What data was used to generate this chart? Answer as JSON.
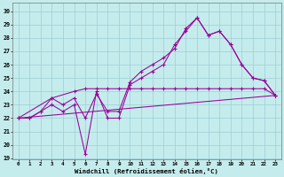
{
  "xlabel": "Windchill (Refroidissement éolien,°C)",
  "background_color": "#c5eced",
  "grid_color": "#9dcdd4",
  "line_color": "#990099",
  "ylim": [
    18.9,
    30.6
  ],
  "xlim": [
    -0.5,
    23.5
  ],
  "yticks": [
    19,
    20,
    21,
    22,
    23,
    24,
    25,
    26,
    27,
    28,
    29,
    30
  ],
  "xticks": [
    0,
    1,
    2,
    3,
    4,
    5,
    6,
    7,
    8,
    9,
    10,
    11,
    12,
    13,
    14,
    15,
    16,
    17,
    18,
    19,
    20,
    21,
    22,
    23
  ],
  "s1x": [
    0,
    1,
    2,
    3,
    4,
    5,
    6,
    7,
    8,
    9,
    10,
    11,
    12,
    13,
    14,
    15,
    16,
    17,
    18,
    19,
    20,
    21,
    22,
    23
  ],
  "s1y": [
    22.0,
    22.0,
    22.5,
    23.0,
    22.5,
    23.0,
    19.3,
    24.0,
    22.0,
    22.0,
    24.5,
    25.0,
    25.5,
    26.0,
    27.5,
    28.5,
    29.5,
    28.2,
    28.5,
    27.5,
    26.0,
    25.0,
    24.8,
    23.7
  ],
  "s2x": [
    0,
    1,
    2,
    3,
    4,
    5,
    6,
    7,
    8,
    9,
    10,
    11,
    12,
    13,
    14,
    15,
    16,
    17,
    18,
    19,
    20,
    21,
    22,
    23
  ],
  "s2y": [
    22.0,
    22.0,
    22.5,
    23.5,
    23.0,
    23.5,
    22.0,
    23.8,
    22.5,
    22.5,
    24.7,
    25.5,
    26.0,
    26.5,
    27.2,
    28.7,
    29.5,
    28.2,
    28.5,
    27.5,
    26.0,
    25.0,
    24.8,
    23.7
  ],
  "s3x": [
    0,
    3,
    5,
    6,
    7,
    8,
    9,
    10,
    11,
    12,
    13,
    14,
    15,
    16,
    17,
    18,
    19,
    20,
    21,
    22,
    23
  ],
  "s3y": [
    22.0,
    23.5,
    24.0,
    24.2,
    24.2,
    24.2,
    24.2,
    24.2,
    24.2,
    24.2,
    24.2,
    24.2,
    24.2,
    24.2,
    24.2,
    24.2,
    24.2,
    24.2,
    24.2,
    24.2,
    23.7
  ],
  "s4x": [
    0,
    23
  ],
  "s4y": [
    22.0,
    23.7
  ]
}
